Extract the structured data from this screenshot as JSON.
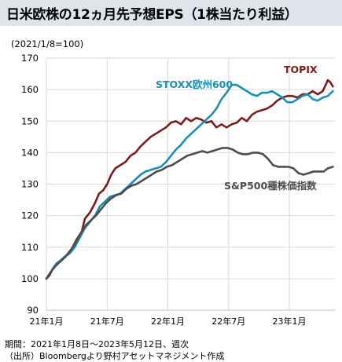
{
  "title": "日米欧株の12ヵ月先予想EPS（1株当たり利益）",
  "base_note": "(2021/1/8=100)",
  "footer": {
    "period": "期間：2021年1月8日～2023年5月12日、週次",
    "source": "（出所）Bloombergより野村アセットマネジメント作成"
  },
  "chart_data": {
    "type": "line",
    "ylim": [
      90,
      170
    ],
    "yticks": [
      90,
      100,
      110,
      120,
      130,
      140,
      150,
      160,
      170
    ],
    "xticks": [
      {
        "label": "21年1月",
        "x": 0
      },
      {
        "label": "21年7月",
        "x": 6
      },
      {
        "label": "22年1月",
        "x": 12
      },
      {
        "label": "22年7月",
        "x": 18
      },
      {
        "label": "23年1月",
        "x": 24
      }
    ],
    "xlim": [
      0,
      28.5
    ],
    "grid": true,
    "series": [
      {
        "name": "TOPIX",
        "color": "#7b1c1c",
        "points": [
          [
            0.0,
            100.0
          ],
          [
            0.3,
            101.0
          ],
          [
            0.6,
            103.0
          ],
          [
            1.0,
            104.8
          ],
          [
            1.5,
            106.0
          ],
          [
            2.0,
            107.5
          ],
          [
            2.5,
            109.5
          ],
          [
            3.0,
            112.5
          ],
          [
            3.5,
            115.0
          ],
          [
            3.8,
            119.0
          ],
          [
            4.3,
            121.0
          ],
          [
            4.8,
            124.0
          ],
          [
            5.2,
            127.0
          ],
          [
            5.6,
            128.0
          ],
          [
            6.0,
            130.0
          ],
          [
            6.4,
            133.0
          ],
          [
            6.8,
            135.0
          ],
          [
            7.3,
            136.0
          ],
          [
            7.8,
            137.0
          ],
          [
            8.3,
            139.0
          ],
          [
            8.8,
            140.0
          ],
          [
            9.3,
            142.0
          ],
          [
            9.8,
            143.5
          ],
          [
            10.3,
            145.0
          ],
          [
            10.8,
            146.0
          ],
          [
            11.3,
            147.0
          ],
          [
            11.8,
            148.0
          ],
          [
            12.3,
            149.5
          ],
          [
            12.8,
            150.0
          ],
          [
            13.3,
            149.0
          ],
          [
            13.8,
            151.0
          ],
          [
            14.3,
            150.0
          ],
          [
            14.8,
            151.0
          ],
          [
            15.3,
            150.5
          ],
          [
            15.8,
            149.5
          ],
          [
            16.3,
            150.0
          ],
          [
            16.8,
            148.0
          ],
          [
            17.3,
            149.0
          ],
          [
            17.8,
            148.0
          ],
          [
            18.3,
            149.0
          ],
          [
            18.8,
            149.5
          ],
          [
            19.3,
            151.0
          ],
          [
            19.8,
            150.0
          ],
          [
            20.3,
            152.0
          ],
          [
            20.8,
            153.0
          ],
          [
            21.3,
            153.5
          ],
          [
            21.8,
            154.0
          ],
          [
            22.3,
            155.0
          ],
          [
            22.8,
            156.5
          ],
          [
            23.3,
            157.5
          ],
          [
            23.8,
            158.0
          ],
          [
            24.3,
            158.0
          ],
          [
            24.8,
            157.5
          ],
          [
            25.3,
            158.5
          ],
          [
            25.8,
            158.5
          ],
          [
            26.3,
            159.5
          ],
          [
            26.8,
            158.5
          ],
          [
            27.3,
            159.5
          ],
          [
            27.8,
            163.0
          ],
          [
            28.0,
            162.5
          ],
          [
            28.3,
            161.0
          ]
        ]
      },
      {
        "name": "STOXX欧州600",
        "color": "#1a8fb5",
        "points": [
          [
            0.0,
            100.0
          ],
          [
            0.4,
            102.0
          ],
          [
            0.8,
            104.0
          ],
          [
            1.3,
            105.5
          ],
          [
            1.8,
            107.0
          ],
          [
            2.3,
            108.0
          ],
          [
            2.8,
            110.0
          ],
          [
            3.3,
            113.0
          ],
          [
            3.8,
            116.0
          ],
          [
            4.3,
            118.0
          ],
          [
            4.8,
            120.0
          ],
          [
            5.3,
            123.0
          ],
          [
            5.8,
            124.5
          ],
          [
            6.3,
            126.0
          ],
          [
            6.8,
            126.5
          ],
          [
            7.3,
            127.0
          ],
          [
            7.8,
            128.5
          ],
          [
            8.3,
            130.0
          ],
          [
            8.8,
            131.5
          ],
          [
            9.3,
            133.0
          ],
          [
            9.8,
            134.0
          ],
          [
            10.3,
            134.5
          ],
          [
            10.8,
            135.0
          ],
          [
            11.3,
            135.5
          ],
          [
            11.8,
            137.0
          ],
          [
            12.3,
            139.0
          ],
          [
            12.8,
            141.0
          ],
          [
            13.3,
            142.5
          ],
          [
            13.8,
            144.5
          ],
          [
            14.3,
            146.0
          ],
          [
            14.8,
            147.5
          ],
          [
            15.3,
            149.0
          ],
          [
            15.8,
            150.5
          ],
          [
            16.3,
            152.0
          ],
          [
            16.8,
            154.0
          ],
          [
            17.3,
            157.0
          ],
          [
            17.8,
            159.0
          ],
          [
            18.3,
            161.5
          ],
          [
            18.8,
            161.5
          ],
          [
            19.3,
            160.5
          ],
          [
            19.8,
            159.5
          ],
          [
            20.3,
            158.5
          ],
          [
            20.8,
            158.0
          ],
          [
            21.3,
            159.0
          ],
          [
            21.8,
            159.0
          ],
          [
            22.3,
            159.5
          ],
          [
            22.8,
            158.5
          ],
          [
            23.3,
            157.5
          ],
          [
            23.8,
            156.0
          ],
          [
            24.3,
            156.0
          ],
          [
            24.8,
            157.0
          ],
          [
            25.3,
            158.0
          ],
          [
            25.8,
            158.5
          ],
          [
            26.3,
            157.0
          ],
          [
            26.8,
            156.5
          ],
          [
            27.3,
            157.5
          ],
          [
            27.8,
            158.0
          ],
          [
            28.3,
            159.5
          ]
        ]
      },
      {
        "name": "S&P500種株価指数",
        "color": "#4d4d4d",
        "points": [
          [
            0.0,
            100.0
          ],
          [
            0.4,
            102.0
          ],
          [
            0.9,
            104.0
          ],
          [
            1.4,
            105.5
          ],
          [
            1.9,
            107.0
          ],
          [
            2.4,
            109.0
          ],
          [
            2.9,
            111.5
          ],
          [
            3.4,
            114.5
          ],
          [
            3.9,
            117.0
          ],
          [
            4.4,
            118.5
          ],
          [
            4.9,
            120.0
          ],
          [
            5.4,
            122.0
          ],
          [
            5.9,
            124.0
          ],
          [
            6.4,
            125.5
          ],
          [
            6.9,
            126.5
          ],
          [
            7.4,
            127.0
          ],
          [
            7.9,
            128.5
          ],
          [
            8.4,
            129.5
          ],
          [
            8.9,
            130.0
          ],
          [
            9.4,
            131.0
          ],
          [
            9.9,
            132.0
          ],
          [
            10.4,
            133.0
          ],
          [
            10.9,
            134.0
          ],
          [
            11.4,
            134.5
          ],
          [
            11.9,
            135.5
          ],
          [
            12.4,
            136.0
          ],
          [
            12.9,
            137.0
          ],
          [
            13.4,
            138.0
          ],
          [
            13.9,
            139.0
          ],
          [
            14.4,
            139.5
          ],
          [
            14.9,
            140.0
          ],
          [
            15.4,
            140.5
          ],
          [
            15.9,
            140.0
          ],
          [
            16.4,
            140.5
          ],
          [
            16.9,
            141.0
          ],
          [
            17.4,
            141.5
          ],
          [
            17.9,
            141.5
          ],
          [
            18.4,
            141.0
          ],
          [
            18.9,
            140.0
          ],
          [
            19.4,
            139.5
          ],
          [
            19.9,
            139.5
          ],
          [
            20.4,
            140.0
          ],
          [
            20.9,
            140.0
          ],
          [
            21.4,
            139.5
          ],
          [
            21.9,
            138.0
          ],
          [
            22.4,
            136.0
          ],
          [
            22.9,
            135.5
          ],
          [
            23.4,
            135.5
          ],
          [
            23.9,
            135.5
          ],
          [
            24.4,
            135.0
          ],
          [
            24.9,
            133.5
          ],
          [
            25.4,
            133.0
          ],
          [
            25.9,
            133.5
          ],
          [
            26.4,
            134.0
          ],
          [
            26.9,
            134.0
          ],
          [
            27.4,
            134.0
          ],
          [
            27.8,
            135.0
          ],
          [
            28.3,
            135.5
          ]
        ]
      }
    ]
  }
}
